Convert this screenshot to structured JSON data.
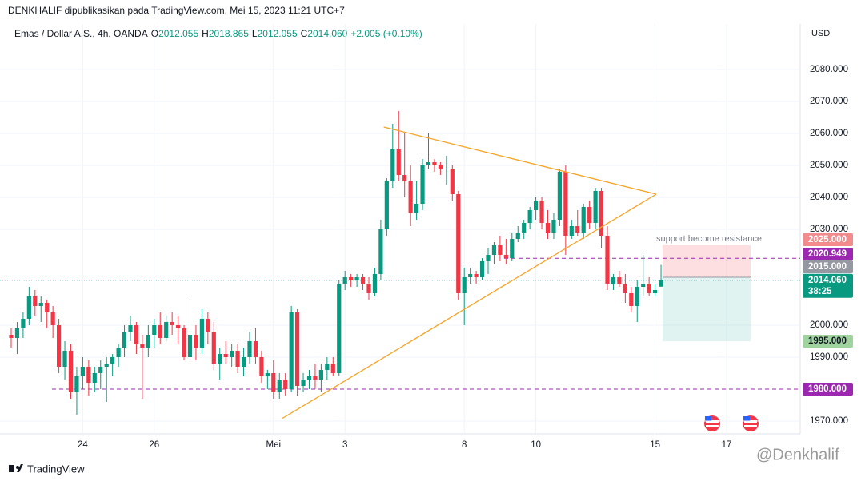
{
  "header": {
    "publisher": "DENKHALIF dipublikasikan pada TradingView.com, Mei 15, 2023 11:21 UTC+7",
    "currency": "USD"
  },
  "chart_data": {
    "type": "candlestick",
    "title": "Emas / Dollar A.S., 4h, OANDA",
    "legend": [
      {
        "key": "O",
        "value": "2012.055"
      },
      {
        "key": "H",
        "value": "2018.865"
      },
      {
        "key": "L",
        "value": "2012.055"
      },
      {
        "key": "C",
        "value": "2014.060"
      }
    ],
    "change": "+2.005 (+0.10%)",
    "categories": [
      null,
      null,
      null,
      null,
      null,
      null,
      null,
      null,
      null,
      null,
      null,
      null,
      "24",
      null,
      null,
      null,
      null,
      null,
      null,
      null,
      null,
      null,
      null,
      null,
      "26",
      null,
      null,
      null,
      null,
      null,
      null,
      null,
      null,
      null,
      null,
      null,
      null,
      null,
      null,
      null,
      null,
      null,
      null,
      null,
      "Mei",
      null,
      null,
      null,
      null,
      null,
      null,
      null,
      null,
      null,
      null,
      null,
      "3",
      null,
      null,
      null,
      null,
      null,
      null,
      null,
      null,
      null,
      null,
      null,
      null,
      null,
      null,
      null,
      null,
      null,
      null,
      null,
      "8",
      null,
      null,
      null,
      null,
      null,
      null,
      null,
      null,
      null,
      null,
      null,
      "10",
      null,
      null,
      null,
      null,
      null,
      null,
      null,
      null,
      null,
      null,
      null,
      null,
      null,
      null,
      null,
      null,
      null,
      null,
      null,
      "15",
      null,
      null,
      null,
      null,
      null,
      null,
      null,
      null,
      null,
      null,
      null,
      "17",
      null,
      null,
      null,
      null,
      null,
      null,
      null,
      null,
      null
    ],
    "open": [
      1997,
      1996,
      1999,
      2002,
      2009,
      2006,
      2007,
      2004,
      2000,
      1987,
      1992,
      1979,
      1984,
      1987,
      1982,
      1985,
      1987,
      1988,
      1990,
      1993,
      1998,
      2000,
      1994,
      1993,
      1997,
      2000,
      1996,
      2001,
      2000,
      1999,
      1990,
      1997,
      1993,
      2002,
      1998,
      1988,
      1991,
      1990,
      1992,
      1987,
      1990,
      1995,
      1990,
      1984,
      1985,
      1979,
      1983,
      1980,
      2004,
      1981,
      1983,
      1984,
      1983,
      1986,
      1988,
      1985,
      2013,
      2015,
      2014,
      2015,
      2013,
      2010,
      2016,
      2030,
      2045,
      2055,
      2047,
      2045,
      2035,
      2038,
      2050,
      2051,
      2050,
      2049,
      2049,
      2041,
      2010,
      2015,
      2016,
      2015,
      2020,
      2022,
      2025,
      2022,
      2021,
      2027,
      2029,
      2032,
      2036,
      2039,
      2032,
      2029,
      2033,
      2048,
      2028,
      2031,
      2029,
      2037,
      2032,
      2042,
      2028,
      2013,
      2015,
      2013,
      2010,
      2006,
      2012,
      2013,
      2010,
      2012.055,
      null,
      null,
      null,
      null,
      null,
      null,
      null,
      null,
      null,
      null,
      null,
      null,
      null,
      null,
      null,
      null,
      null,
      null,
      null,
      null
    ],
    "high": [
      1999,
      2001,
      2004,
      2012,
      2011,
      2009,
      2008,
      2006,
      2002,
      1995,
      1994,
      1987,
      1990,
      1989,
      1987,
      1989,
      1990,
      1991,
      1994,
      2000,
      2003,
      2001,
      1997,
      2000,
      2002,
      2004,
      2003,
      2004,
      2003,
      2000,
      2009,
      2000,
      2005,
      2004,
      2001,
      1993,
      1995,
      1994,
      1994,
      1993,
      1998,
      1999,
      1992,
      1986,
      1989,
      1985,
      1985,
      2006,
      2005,
      1985,
      1986,
      1988,
      1988,
      1990,
      1990,
      2014,
      2017,
      2016,
      2016,
      2016,
      2015,
      2018,
      2033,
      2046,
      2063,
      2067,
      2060,
      2050,
      2045,
      2052,
      2060,
      2052,
      2051,
      2053,
      2050,
      2042,
      2018,
      2018,
      2017,
      2021,
      2024,
      2026,
      2028,
      2027,
      2029,
      2031,
      2033,
      2037,
      2040,
      2040,
      2036,
      2035,
      2049,
      2050,
      2033,
      2036,
      2038,
      2039,
      2043,
      2043,
      2031,
      2016,
      2017,
      2016,
      2012,
      2014,
      2022,
      2015,
      2013,
      2018.865,
      null,
      null,
      null,
      null,
      null,
      null,
      null,
      null,
      null,
      null,
      null,
      null,
      null,
      null,
      null,
      null,
      null,
      null,
      null,
      null
    ],
    "low": [
      1993,
      1991,
      1996,
      2000,
      2003,
      2001,
      1999,
      1996,
      1985,
      1983,
      1977,
      1972,
      1980,
      1978,
      1979,
      1980,
      1976,
      1984,
      1987,
      1990,
      1995,
      1991,
      1977,
      1990,
      1993,
      1994,
      1995,
      1997,
      1994,
      1989,
      1988,
      1989,
      1991,
      1994,
      1986,
      1983,
      1988,
      1987,
      1985,
      1984,
      1988,
      1988,
      1982,
      1980,
      1977,
      1977,
      1978,
      1979,
      1978,
      1979,
      1980,
      1980,
      1979,
      1983,
      1984,
      1984,
      2011,
      2012,
      2012,
      2011,
      2008,
      2009,
      2014,
      2028,
      2043,
      2045,
      2040,
      2031,
      2033,
      2036,
      2049,
      2048,
      2047,
      2044,
      2039,
      2008,
      2000,
      2013,
      2013,
      2014,
      2016,
      2019,
      2020,
      2019,
      2020,
      2026,
      2027,
      2030,
      2033,
      2030,
      2027,
      2027,
      2031,
      2022,
      2027,
      2028,
      2027,
      2030,
      2030,
      2024,
      2011,
      2011,
      2012,
      2007,
      2004,
      2001,
      2009,
      2009,
      2009,
      2012.055,
      null,
      null,
      null,
      null,
      null,
      null,
      null,
      null,
      null,
      null,
      null,
      null,
      null,
      null,
      null,
      null,
      null,
      null,
      null,
      null
    ],
    "close": [
      1996,
      1999,
      2002,
      2009,
      2006,
      2007,
      2004,
      2000,
      1987,
      1992,
      1979,
      1984,
      1987,
      1982,
      1985,
      1987,
      1988,
      1990,
      1993,
      1998,
      2000,
      1994,
      1993,
      1997,
      2000,
      1996,
      2001,
      2000,
      1999,
      1990,
      1997,
      1993,
      2002,
      1998,
      1988,
      1991,
      1990,
      1992,
      1987,
      1990,
      1995,
      1990,
      1984,
      1985,
      1979,
      1983,
      1980,
      2004,
      1981,
      1983,
      1984,
      1983,
      1986,
      1988,
      1985,
      2013,
      2015,
      2014,
      2015,
      2013,
      2010,
      2016,
      2030,
      2045,
      2055,
      2047,
      2045,
      2035,
      2038,
      2050,
      2051,
      2050,
      2049,
      2049,
      2041,
      2010,
      2015,
      2016,
      2015,
      2020,
      2022,
      2025,
      2022,
      2021,
      2027,
      2029,
      2032,
      2036,
      2039,
      2032,
      2029,
      2033,
      2048,
      2028,
      2031,
      2029,
      2037,
      2032,
      2042,
      2028,
      2013,
      2015,
      2013,
      2010,
      2006,
      2012,
      2013,
      2010,
      2011,
      2014.06,
      null,
      null,
      null,
      null,
      null,
      null,
      null,
      null,
      null,
      null,
      null,
      null,
      null,
      null,
      null,
      null,
      null,
      null,
      null,
      null
    ],
    "up_color": "#089981",
    "down_color": "#f23645",
    "ylim": [
      1966,
      2094.25
    ],
    "yticks": [
      {
        "value": 1970,
        "label": "1970.000"
      },
      {
        "value": 1990,
        "label": "1990.000"
      },
      {
        "value": 2000,
        "label": "2000.000"
      },
      {
        "value": 2030,
        "label": "2030.000"
      },
      {
        "value": 2040,
        "label": "2040.000"
      },
      {
        "value": 2050,
        "label": "2050.000"
      },
      {
        "value": 2060,
        "label": "2060.000"
      },
      {
        "value": 2070,
        "label": "2070.000"
      },
      {
        "value": 2080,
        "label": "2080.000"
      }
    ],
    "grid": true,
    "price_labels": [
      {
        "value": 2025,
        "label": "2025.000",
        "bg": "#f28b8b",
        "fg": "#ffffff",
        "line": "position"
      },
      {
        "value": 2020.949,
        "label": "2020.949",
        "bg": "#9c27b0",
        "fg": "#ffffff",
        "line": "dashed"
      },
      {
        "value": 2015,
        "label": "2015.000",
        "bg": "#9598a1",
        "fg": "#ffffff",
        "line": "position"
      },
      {
        "value": 2014.06,
        "label": "2014.060",
        "sub": "38:25",
        "bg": "#089981",
        "fg": "#ffffff",
        "line": "dotted"
      },
      {
        "value": 1995,
        "label": "1995.000",
        "bg": "#9fd49e",
        "fg": "#131722",
        "line": "position"
      },
      {
        "value": 1980,
        "label": "1980.000",
        "bg": "#9c27b0",
        "fg": "#ffffff",
        "line": "dashed"
      }
    ],
    "trendlines": [
      {
        "color": "#f7a325",
        "points": [
          [
            62.5,
            2062
          ],
          [
            108.2,
            2041
          ]
        ]
      },
      {
        "color": "#f7a325",
        "points": [
          [
            45.4,
            1970.75
          ],
          [
            108.2,
            2041
          ]
        ]
      }
    ],
    "annotation": "support become resistance"
  },
  "footer": {
    "brand": "TradingView",
    "watermark": "@Denkhalif"
  }
}
